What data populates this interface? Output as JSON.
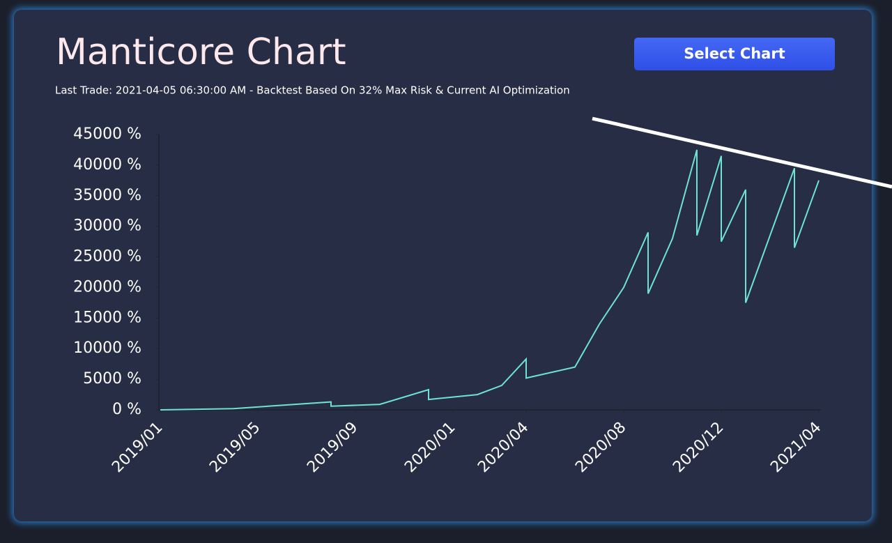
{
  "header": {
    "title": "Manticore Chart",
    "subtitle": "Last Trade: 2021-04-05 06:30:00 AM - Backtest Based On 32% Max Risk & Current AI Optimization",
    "button": "Select Chart"
  },
  "chart_data": {
    "type": "line",
    "x": [
      "2019/01",
      "2019/04",
      "2019/08",
      "2019/08",
      "2019/10",
      "2019/12",
      "2019/12",
      "2020/02",
      "2020/03",
      "2020/04",
      "2020/04",
      "2020/06",
      "2020/07",
      "2020/08",
      "2020/09",
      "2020/09",
      "2020/10",
      "2020/11",
      "2020/11",
      "2020/12",
      "2020/12",
      "2021/01",
      "2021/01",
      "2021/01",
      "2021/03",
      "2021/03",
      "2021/04"
    ],
    "series": [
      {
        "color": "#6fe3d3",
        "values": [
          0,
          200,
          1300,
          600,
          900,
          3300,
          1700,
          2500,
          4000,
          8300,
          5200,
          7000,
          14000,
          20000,
          29000,
          19000,
          28000,
          42500,
          28500,
          41500,
          27500,
          36000,
          26000,
          17500,
          39500,
          26500,
          37500
        ]
      }
    ],
    "xlim": [
      "2019/01",
      "2021/04"
    ],
    "xticks": [
      "2019/01",
      "2019/05",
      "2019/09",
      "2020/01",
      "2020/04",
      "2020/08",
      "2020/12",
      "2021/04"
    ],
    "ylim": [
      0,
      45000
    ],
    "yticks": [
      {
        "value": 0,
        "label": "0 %"
      },
      {
        "value": 5000,
        "label": "5000 %"
      },
      {
        "value": 10000,
        "label": "10000 %"
      },
      {
        "value": 15000,
        "label": "15000 %"
      },
      {
        "value": 20000,
        "label": "20000 %"
      },
      {
        "value": 25000,
        "label": "25000 %"
      },
      {
        "value": 30000,
        "label": "30000 %"
      },
      {
        "value": 35000,
        "label": "35000 %"
      },
      {
        "value": 40000,
        "label": "40000 %"
      },
      {
        "value": 45000,
        "label": "45000 %"
      }
    ]
  }
}
